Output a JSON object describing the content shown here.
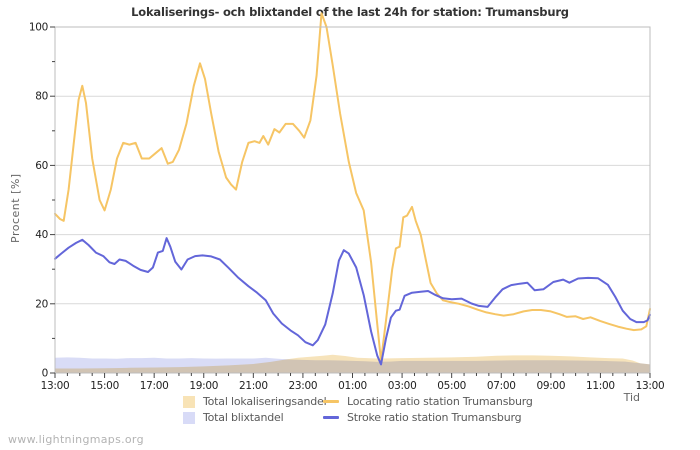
{
  "title": "Lokaliserings- och blixtandel of the last 24h for station: Trumansburg",
  "watermark": "www.lightningmaps.org",
  "y_axis": {
    "title": "Procent  [%]",
    "ticks": [
      "0",
      "20",
      "40",
      "60",
      "80",
      "100"
    ]
  },
  "x_axis": {
    "title": "Tid",
    "tick_labels": [
      "13:00",
      "15:00",
      "17:00",
      "19:00",
      "21:00",
      "23:00",
      "01:00",
      "03:00",
      "05:00",
      "07:00",
      "09:00",
      "11:00",
      "13:00"
    ]
  },
  "legend": {
    "items": [
      {
        "label": "Total lokaliseringsandel",
        "type": "area",
        "color": "#f8e3b6"
      },
      {
        "label": "Total blixtandel",
        "type": "area",
        "color": "#d8dbf7"
      },
      {
        "label": "Locating ratio station Trumansburg",
        "type": "line",
        "color": "#f6c565"
      },
      {
        "label": "Stroke ratio station Trumansburg",
        "type": "line",
        "color": "#6366d9"
      }
    ]
  },
  "chart_data": {
    "type": "line",
    "title": "Lokaliserings- och blixtandel of the last 24h for station: Trumansburg",
    "xlabel": "Tid",
    "ylabel": "Procent [%]",
    "ylim": [
      0,
      100
    ],
    "y_ticks": [
      0,
      20,
      40,
      60,
      80,
      100
    ],
    "x_start_label": "13:00",
    "x_span_hours": 24,
    "x_tick_labels": [
      "13:00",
      "15:00",
      "17:00",
      "19:00",
      "21:00",
      "23:00",
      "01:00",
      "03:00",
      "05:00",
      "07:00",
      "09:00",
      "11:00",
      "13:00"
    ],
    "grid": "horizontal",
    "legend_position": "bottom",
    "series": [
      {
        "id": "total_blixtandel",
        "name": "Total blixtandel",
        "type": "area",
        "color": "#d9dcf6",
        "blend": false,
        "points": [
          [
            0,
            4.4
          ],
          [
            0.5,
            4.5
          ],
          [
            1,
            4.4
          ],
          [
            1.5,
            4.2
          ],
          [
            2,
            4.2
          ],
          [
            2.5,
            4.1
          ],
          [
            3,
            4.3
          ],
          [
            3.5,
            4.3
          ],
          [
            4,
            4.4
          ],
          [
            4.5,
            4.2
          ],
          [
            5,
            4.2
          ],
          [
            5.5,
            4.3
          ],
          [
            6,
            4.2
          ],
          [
            6.5,
            4.15
          ],
          [
            7,
            4.2
          ],
          [
            7.5,
            4.2
          ],
          [
            8,
            4.2
          ],
          [
            8.5,
            4.4
          ],
          [
            9,
            4.1
          ],
          [
            9.5,
            3.9
          ],
          [
            10,
            3.8
          ],
          [
            10.5,
            3.7
          ],
          [
            11,
            3.7
          ],
          [
            11.5,
            3.6
          ],
          [
            12,
            3.5
          ],
          [
            12.5,
            3.4
          ],
          [
            13,
            3.2
          ],
          [
            13.5,
            3.3
          ],
          [
            14,
            3.5
          ],
          [
            15,
            3.5
          ],
          [
            16,
            3.5
          ],
          [
            17,
            3.5
          ],
          [
            18,
            3.6
          ],
          [
            19,
            3.7
          ],
          [
            20,
            3.7
          ],
          [
            21,
            3.6
          ],
          [
            22,
            3.5
          ],
          [
            23,
            3.3
          ],
          [
            23.5,
            2.9
          ],
          [
            24,
            2.5
          ]
        ]
      },
      {
        "id": "total_lokaliseringsandel",
        "name": "Total lokaliseringsandel",
        "type": "area",
        "color": "#f6e3bb",
        "blend": true,
        "points": [
          [
            0,
            1.3
          ],
          [
            1,
            1.3
          ],
          [
            2,
            1.4
          ],
          [
            3,
            1.5
          ],
          [
            4,
            1.6
          ],
          [
            5,
            1.7
          ],
          [
            6,
            1.9
          ],
          [
            7,
            2.2
          ],
          [
            8,
            2.6
          ],
          [
            8.7,
            3.2
          ],
          [
            9.3,
            3.9
          ],
          [
            9.8,
            4.4
          ],
          [
            10.3,
            4.7
          ],
          [
            10.8,
            5.0
          ],
          [
            11.2,
            5.3
          ],
          [
            11.7,
            4.9
          ],
          [
            12.2,
            4.4
          ],
          [
            13,
            4.2
          ],
          [
            14,
            4.3
          ],
          [
            15,
            4.4
          ],
          [
            16,
            4.5
          ],
          [
            17,
            4.7
          ],
          [
            17.8,
            5.0
          ],
          [
            18.5,
            5.1
          ],
          [
            19.3,
            5.1
          ],
          [
            20,
            5.0
          ],
          [
            20.8,
            4.8
          ],
          [
            21.6,
            4.5
          ],
          [
            22.3,
            4.3
          ],
          [
            22.9,
            4.2
          ],
          [
            23.3,
            3.6
          ],
          [
            23.6,
            2.8
          ],
          [
            24,
            2.5
          ]
        ]
      },
      {
        "id": "locating_ratio",
        "name": "Locating ratio station Trumansburg",
        "type": "line",
        "color": "#f6c565",
        "blend": false,
        "points": [
          [
            0,
            46
          ],
          [
            0.2,
            44.5
          ],
          [
            0.35,
            44
          ],
          [
            0.55,
            53
          ],
          [
            0.75,
            66
          ],
          [
            0.95,
            79
          ],
          [
            1.1,
            83
          ],
          [
            1.25,
            78
          ],
          [
            1.5,
            62
          ],
          [
            1.8,
            50
          ],
          [
            2.0,
            47
          ],
          [
            2.25,
            53
          ],
          [
            2.5,
            62
          ],
          [
            2.75,
            66.5
          ],
          [
            3.0,
            66
          ],
          [
            3.25,
            66.5
          ],
          [
            3.5,
            62
          ],
          [
            3.8,
            62
          ],
          [
            4.05,
            63.5
          ],
          [
            4.3,
            65
          ],
          [
            4.55,
            60.5
          ],
          [
            4.75,
            61
          ],
          [
            5.0,
            64.5
          ],
          [
            5.3,
            72
          ],
          [
            5.6,
            83
          ],
          [
            5.85,
            89.5
          ],
          [
            6.05,
            85
          ],
          [
            6.3,
            75
          ],
          [
            6.6,
            64
          ],
          [
            6.9,
            56.5
          ],
          [
            7.1,
            54.5
          ],
          [
            7.3,
            53
          ],
          [
            7.55,
            61
          ],
          [
            7.8,
            66.5
          ],
          [
            8.05,
            67
          ],
          [
            8.25,
            66.5
          ],
          [
            8.4,
            68.5
          ],
          [
            8.6,
            66
          ],
          [
            8.85,
            70.5
          ],
          [
            9.05,
            69.5
          ],
          [
            9.3,
            72
          ],
          [
            9.6,
            72
          ],
          [
            9.85,
            70
          ],
          [
            10.05,
            68
          ],
          [
            10.3,
            73
          ],
          [
            10.55,
            86
          ],
          [
            10.75,
            104
          ],
          [
            10.95,
            100
          ],
          [
            11.2,
            89
          ],
          [
            11.5,
            75
          ],
          [
            11.85,
            61
          ],
          [
            12.15,
            52
          ],
          [
            12.45,
            47
          ],
          [
            12.75,
            32
          ],
          [
            13.0,
            14
          ],
          [
            13.15,
            3.5
          ],
          [
            13.4,
            18
          ],
          [
            13.6,
            30
          ],
          [
            13.75,
            36
          ],
          [
            13.9,
            36.5
          ],
          [
            14.05,
            45
          ],
          [
            14.2,
            45.5
          ],
          [
            14.4,
            48
          ],
          [
            14.55,
            44
          ],
          [
            14.75,
            40
          ],
          [
            14.95,
            33
          ],
          [
            15.15,
            26
          ],
          [
            15.4,
            23
          ],
          [
            15.65,
            21
          ],
          [
            15.95,
            20.5
          ],
          [
            16.3,
            20
          ],
          [
            16.7,
            19.2
          ],
          [
            17.05,
            18.3
          ],
          [
            17.4,
            17.5
          ],
          [
            17.75,
            17
          ],
          [
            18.1,
            16.6
          ],
          [
            18.5,
            17
          ],
          [
            18.9,
            17.8
          ],
          [
            19.25,
            18.2
          ],
          [
            19.6,
            18.2
          ],
          [
            20.0,
            17.8
          ],
          [
            20.35,
            17
          ],
          [
            20.65,
            16.2
          ],
          [
            21.0,
            16.4
          ],
          [
            21.3,
            15.6
          ],
          [
            21.6,
            16.1
          ],
          [
            22.0,
            15
          ],
          [
            22.35,
            14.2
          ],
          [
            22.7,
            13.4
          ],
          [
            23.05,
            12.8
          ],
          [
            23.35,
            12.4
          ],
          [
            23.65,
            12.6
          ],
          [
            23.85,
            13.5
          ],
          [
            24,
            18.5
          ]
        ]
      },
      {
        "id": "stroke_ratio",
        "name": "Stroke ratio station Trumansburg",
        "type": "line",
        "color": "#6366d9",
        "blend": false,
        "points": [
          [
            0,
            33
          ],
          [
            0.25,
            34.5
          ],
          [
            0.55,
            36.2
          ],
          [
            0.85,
            37.6
          ],
          [
            1.1,
            38.5
          ],
          [
            1.35,
            37
          ],
          [
            1.65,
            34.8
          ],
          [
            1.95,
            33.8
          ],
          [
            2.2,
            32
          ],
          [
            2.4,
            31.5
          ],
          [
            2.6,
            32.8
          ],
          [
            2.85,
            32.4
          ],
          [
            3.15,
            31
          ],
          [
            3.45,
            29.8
          ],
          [
            3.75,
            29.2
          ],
          [
            3.95,
            30.5
          ],
          [
            4.15,
            34.8
          ],
          [
            4.35,
            35.3
          ],
          [
            4.5,
            39
          ],
          [
            4.65,
            36.5
          ],
          [
            4.85,
            32.2
          ],
          [
            5.1,
            29.9
          ],
          [
            5.35,
            32.8
          ],
          [
            5.65,
            33.8
          ],
          [
            5.95,
            34
          ],
          [
            6.3,
            33.7
          ],
          [
            6.65,
            32.8
          ],
          [
            7.0,
            30.4
          ],
          [
            7.4,
            27.5
          ],
          [
            7.8,
            25.1
          ],
          [
            8.15,
            23.2
          ],
          [
            8.5,
            21
          ],
          [
            8.8,
            17.2
          ],
          [
            9.15,
            14.3
          ],
          [
            9.5,
            12.3
          ],
          [
            9.8,
            10.9
          ],
          [
            10.1,
            8.9
          ],
          [
            10.4,
            8
          ],
          [
            10.6,
            9.5
          ],
          [
            10.9,
            14
          ],
          [
            11.2,
            23
          ],
          [
            11.45,
            32.5
          ],
          [
            11.65,
            35.5
          ],
          [
            11.85,
            34.5
          ],
          [
            12.15,
            30.5
          ],
          [
            12.45,
            22.5
          ],
          [
            12.75,
            12
          ],
          [
            13.0,
            5
          ],
          [
            13.15,
            2.5
          ],
          [
            13.35,
            10
          ],
          [
            13.55,
            16
          ],
          [
            13.75,
            18
          ],
          [
            13.9,
            18.3
          ],
          [
            14.1,
            22.3
          ],
          [
            14.4,
            23.2
          ],
          [
            14.75,
            23.5
          ],
          [
            15.05,
            23.7
          ],
          [
            15.35,
            22.5
          ],
          [
            15.65,
            21.6
          ],
          [
            16.0,
            21.3
          ],
          [
            16.4,
            21.5
          ],
          [
            16.8,
            20.1
          ],
          [
            17.1,
            19.4
          ],
          [
            17.45,
            19.1
          ],
          [
            17.75,
            21.8
          ],
          [
            18.05,
            24.2
          ],
          [
            18.4,
            25.4
          ],
          [
            18.75,
            25.8
          ],
          [
            19.05,
            26.1
          ],
          [
            19.35,
            23.9
          ],
          [
            19.7,
            24.2
          ],
          [
            20.1,
            26.3
          ],
          [
            20.5,
            27
          ],
          [
            20.75,
            26.1
          ],
          [
            21.1,
            27.3
          ],
          [
            21.5,
            27.5
          ],
          [
            21.9,
            27.4
          ],
          [
            22.3,
            25.5
          ],
          [
            22.6,
            22
          ],
          [
            22.9,
            18
          ],
          [
            23.2,
            15.6
          ],
          [
            23.45,
            14.7
          ],
          [
            23.75,
            14.7
          ],
          [
            23.9,
            15.2
          ],
          [
            24,
            16.8
          ]
        ]
      }
    ]
  }
}
